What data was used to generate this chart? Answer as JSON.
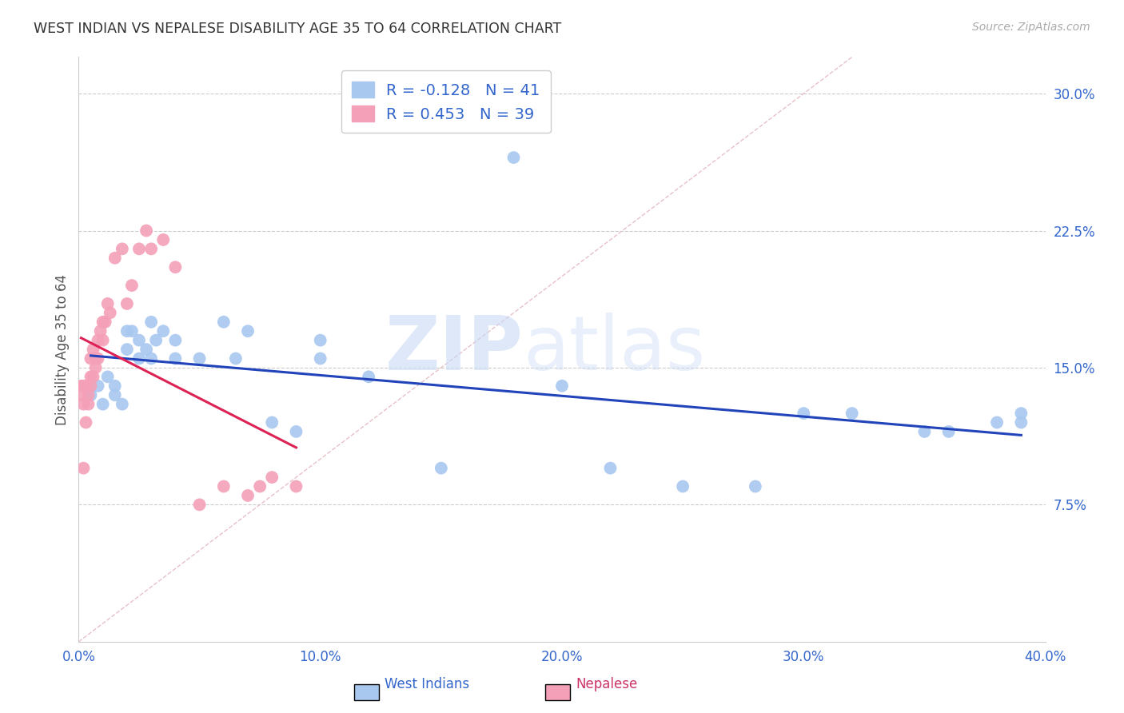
{
  "title": "WEST INDIAN VS NEPALESE DISABILITY AGE 35 TO 64 CORRELATION CHART",
  "source": "Source: ZipAtlas.com",
  "ylabel": "Disability Age 35 to 64",
  "xlabel_west_indians": "West Indians",
  "xlabel_nepalese": "Nepalese",
  "xlim": [
    0.0,
    0.4
  ],
  "ylim": [
    0.0,
    0.32
  ],
  "xticks": [
    0.0,
    0.1,
    0.2,
    0.3,
    0.4
  ],
  "xtick_labels": [
    "0.0%",
    "10.0%",
    "20.0%",
    "30.0%",
    "40.0%"
  ],
  "yticks": [
    0.075,
    0.15,
    0.225,
    0.3
  ],
  "ytick_labels": [
    "7.5%",
    "15.0%",
    "22.5%",
    "30.0%"
  ],
  "r_west_indians": -0.128,
  "n_west_indians": 41,
  "r_nepalese": 0.453,
  "n_nepalese": 39,
  "color_west_indians": "#a8c8f0",
  "color_nepalese": "#f4a0b8",
  "line_color_west_indians": "#3366cc",
  "line_color_nepalese": "#cc3366",
  "line_color_blue": "#2244bb",
  "line_color_pink": "#dd2255",
  "diagonal_color": "#e8c0c8",
  "watermark_zip": "ZIP",
  "watermark_atlas": "atlas",
  "west_indians_x": [
    0.005,
    0.008,
    0.01,
    0.012,
    0.015,
    0.015,
    0.018,
    0.02,
    0.02,
    0.022,
    0.025,
    0.025,
    0.028,
    0.03,
    0.03,
    0.032,
    0.035,
    0.04,
    0.04,
    0.05,
    0.06,
    0.065,
    0.07,
    0.08,
    0.09,
    0.1,
    0.1,
    0.12,
    0.15,
    0.18,
    0.2,
    0.22,
    0.25,
    0.28,
    0.3,
    0.32,
    0.35,
    0.36,
    0.38,
    0.39,
    0.39
  ],
  "west_indians_y": [
    0.135,
    0.14,
    0.13,
    0.145,
    0.14,
    0.135,
    0.13,
    0.17,
    0.16,
    0.17,
    0.165,
    0.155,
    0.16,
    0.175,
    0.155,
    0.165,
    0.17,
    0.165,
    0.155,
    0.155,
    0.175,
    0.155,
    0.17,
    0.12,
    0.115,
    0.165,
    0.155,
    0.145,
    0.095,
    0.265,
    0.14,
    0.095,
    0.085,
    0.085,
    0.125,
    0.125,
    0.115,
    0.115,
    0.12,
    0.12,
    0.125
  ],
  "nepalese_x": [
    0.001,
    0.001,
    0.002,
    0.002,
    0.002,
    0.003,
    0.003,
    0.004,
    0.004,
    0.005,
    0.005,
    0.005,
    0.006,
    0.006,
    0.007,
    0.007,
    0.008,
    0.008,
    0.009,
    0.01,
    0.01,
    0.011,
    0.012,
    0.013,
    0.015,
    0.018,
    0.02,
    0.022,
    0.025,
    0.028,
    0.03,
    0.035,
    0.04,
    0.05,
    0.06,
    0.07,
    0.075,
    0.08,
    0.09
  ],
  "nepalese_y": [
    0.135,
    0.14,
    0.095,
    0.13,
    0.14,
    0.12,
    0.14,
    0.13,
    0.135,
    0.14,
    0.145,
    0.155,
    0.145,
    0.16,
    0.15,
    0.155,
    0.155,
    0.165,
    0.17,
    0.165,
    0.175,
    0.175,
    0.185,
    0.18,
    0.21,
    0.215,
    0.185,
    0.195,
    0.215,
    0.225,
    0.215,
    0.22,
    0.205,
    0.075,
    0.085,
    0.08,
    0.085,
    0.09,
    0.085
  ]
}
